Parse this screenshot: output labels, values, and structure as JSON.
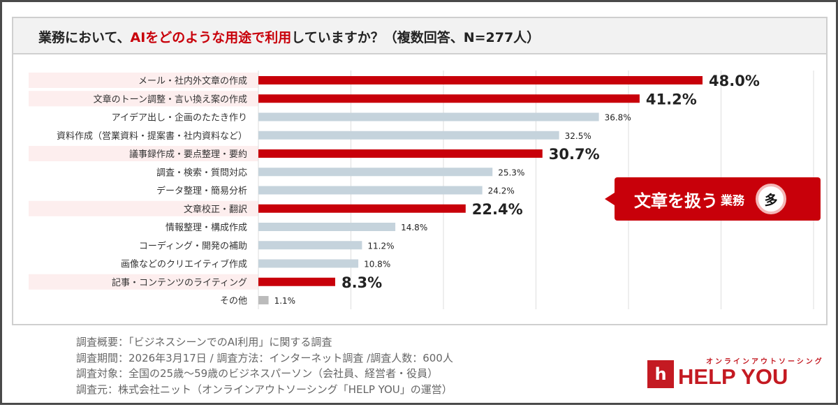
{
  "title": {
    "pre": "業務において、",
    "highlight": "AIをどのような用途で利用",
    "post": "していますか？（複数回答、N=277人）"
  },
  "colors": {
    "highlight": "#c8000a",
    "normal": "#c5d3dc",
    "other": "#bbbbbb",
    "label_bg": "#fdeeee"
  },
  "chart_data": {
    "type": "bar",
    "orientation": "horizontal",
    "xlim": [
      0,
      60
    ],
    "grid": true,
    "unit": "%",
    "categories": [
      "メール・社内外文章の作成",
      "文章のトーン調整・言い換え案の作成",
      "アイデア出し・企画のたたき作り",
      "資料作成（営業資料・提案書・社内資料など）",
      "議事録作成・要点整理・要約",
      "調査・検索・質問対応",
      "データ整理・簡易分析",
      "文章校正・翻訳",
      "情報整理・構成作成",
      "コーディング・開発の補助",
      "画像などのクリエイティブ作成",
      "記事・コンテンツのライティング",
      "その他"
    ],
    "values": [
      48.0,
      41.2,
      36.8,
      32.5,
      30.7,
      25.3,
      24.2,
      22.4,
      14.8,
      11.2,
      10.8,
      8.3,
      1.1
    ],
    "labels": [
      "48.0%",
      "41.2%",
      "36.8%",
      "32.5%",
      "30.7%",
      "25.3%",
      "24.2%",
      "22.4%",
      "14.8%",
      "11.2%",
      "10.8%",
      "8.3%",
      "1.1%"
    ],
    "highlighted": [
      true,
      true,
      false,
      false,
      true,
      false,
      false,
      true,
      false,
      false,
      false,
      true,
      false
    ]
  },
  "callout": {
    "big": "文章を扱う",
    "small": "業務",
    "circle": "多"
  },
  "notes": [
    "調査概要：「ビジネスシーンでのAI利用」に関する調査",
    "調査期間：2026年3月17日 / 調査方法：インターネット調査 /調査人数：600人",
    "調査対象：全国の25歳～59歳のビジネスパーソン（会社員、経営者・役員）",
    "調査元：株式会社ニット（オンラインアウトソーシング「HELP YOU」の運営）"
  ],
  "logo": {
    "mark": "h",
    "kana": "オンラインアウトソーシング",
    "name": "HELP YOU"
  }
}
